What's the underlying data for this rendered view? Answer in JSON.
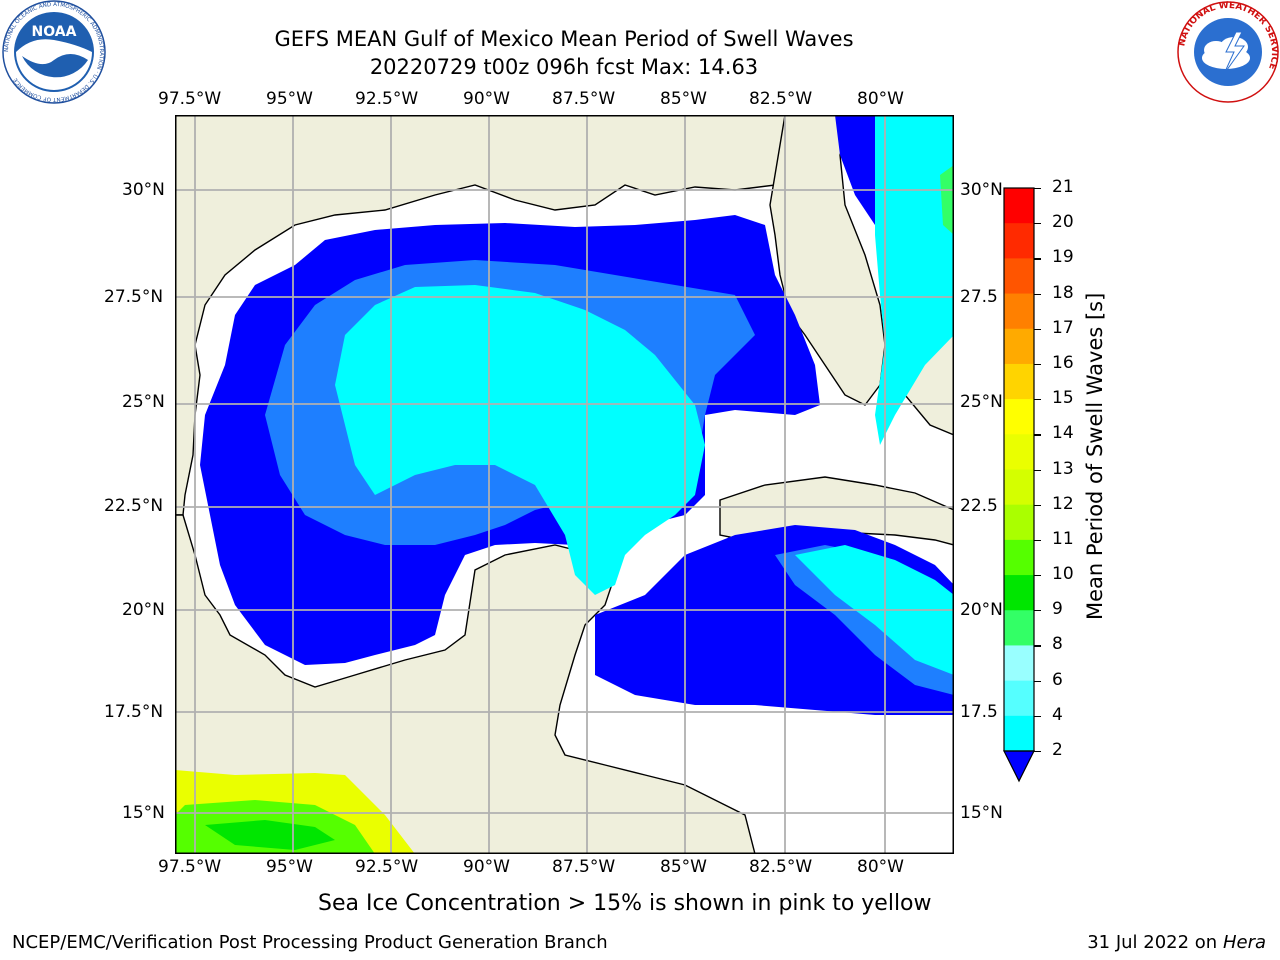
{
  "title_line1": "GEFS MEAN Gulf of Mexico Mean Period of Swell Waves",
  "title_line2": "20220729 t00z 096h fcst   Max: 14.63",
  "lon_labels": [
    "97.5°W",
    "95°W",
    "92.5°W",
    "90°W",
    "87.5°W",
    "85°W",
    "82.5°W",
    "80°W"
  ],
  "lat_labels_left": [
    "30°N",
    "27.5°N",
    "25°N",
    "22.5°N",
    "20°N",
    "17.5°N",
    "15°N"
  ],
  "lat_labels_right": [
    "30°N",
    "27.5",
    "25°N",
    "22.5",
    "20°N",
    "17.5",
    "15°N"
  ],
  "colorbar": {
    "label": "Mean Period of Swell Waves [s]",
    "ticks": [
      "21",
      "20",
      "19",
      "18",
      "17",
      "16",
      "15",
      "14",
      "13",
      "12",
      "11",
      "10",
      "9",
      "8",
      "6",
      "4",
      "2"
    ],
    "colors": [
      "#ff0000",
      "#ff2a00",
      "#ff5500",
      "#ff8000",
      "#ffaa00",
      "#ffd400",
      "#ffff00",
      "#eaff00",
      "#d4ff00",
      "#aaff00",
      "#55ff00",
      "#00e600",
      "#33ff66",
      "#99ffff",
      "#55ffff",
      "#00ffff",
      "#0080ff",
      "#0000ff"
    ]
  },
  "colors": {
    "land": "#efefdc",
    "ocean_swell_low": "#0000ff",
    "ocean_swell_mid": "#1e7fff",
    "ocean_swell_high": "#00ffff",
    "grid": "#b0b0b0"
  },
  "bottom_note": "Sea Ice Concentration > 15% is shown in pink to yellow",
  "footer_left": "NCEP/EMC/Verification Post Processing Product Generation Branch",
  "footer_right_date": "31 Jul 2022 on ",
  "footer_right_host": "Hera",
  "logos": {
    "noaa_text": "NOAA",
    "noaa_ring": "NATIONAL OCEANIC AND ATMOSPHERIC ADMINISTRATION · U.S. DEPARTMENT OF COMMERCE",
    "nws_ring": "NATIONAL WEATHER SERVICE"
  }
}
